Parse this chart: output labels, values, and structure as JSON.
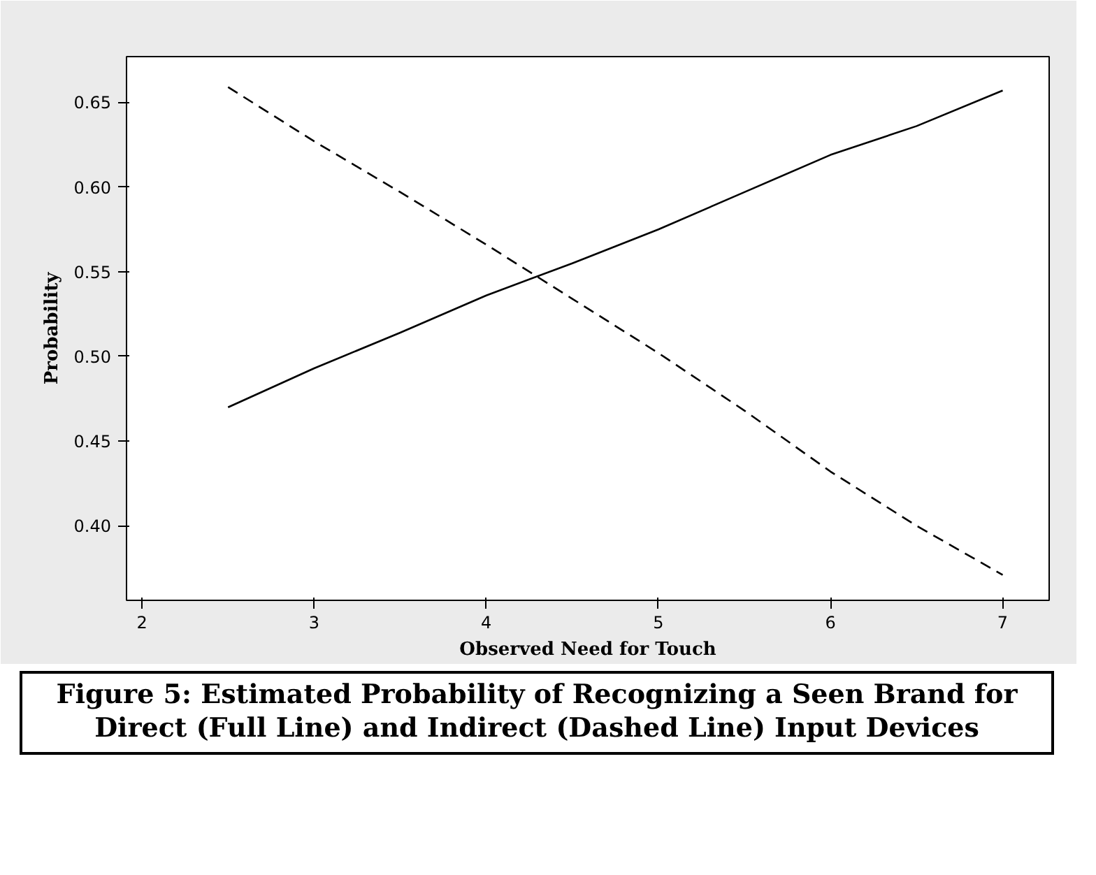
{
  "chart_data": {
    "type": "line",
    "title": "Figure 5: Estimated Probability of Recognizing a Seen Brand for Direct (Full Line) and Indirect (Dashed Line) Input Devices",
    "xlabel": "Observed Need for Touch",
    "ylabel": "Probability",
    "x": [
      2.5,
      3,
      3.5,
      4,
      4.5,
      5,
      5.5,
      6,
      6.5,
      7
    ],
    "series": [
      {
        "color": "#000000",
        "line_style": "solid",
        "values": [
          0.47,
          0.493,
          0.514,
          0.536,
          0.555,
          0.575,
          0.597,
          0.619,
          0.636,
          0.657
        ]
      },
      {
        "color": "#000000",
        "line_style": "dashed",
        "values": [
          0.659,
          0.627,
          0.597,
          0.566,
          0.534,
          0.502,
          0.468,
          0.432,
          0.4,
          0.371
        ]
      }
    ],
    "xlim": [
      1.91,
      7.27
    ],
    "ylim": [
      0.356,
      0.677
    ],
    "xticks": [
      2,
      3,
      4,
      5,
      6,
      7
    ],
    "yticks": [
      {
        "value": 0.4,
        "label": "0.40"
      },
      {
        "value": 0.45,
        "label": "0.45"
      },
      {
        "value": 0.5,
        "label": "0.50"
      },
      {
        "value": 0.55,
        "label": "0.55"
      },
      {
        "value": 0.6,
        "label": "0.60"
      },
      {
        "value": 0.65,
        "label": "0.65"
      }
    ],
    "grid": false
  }
}
